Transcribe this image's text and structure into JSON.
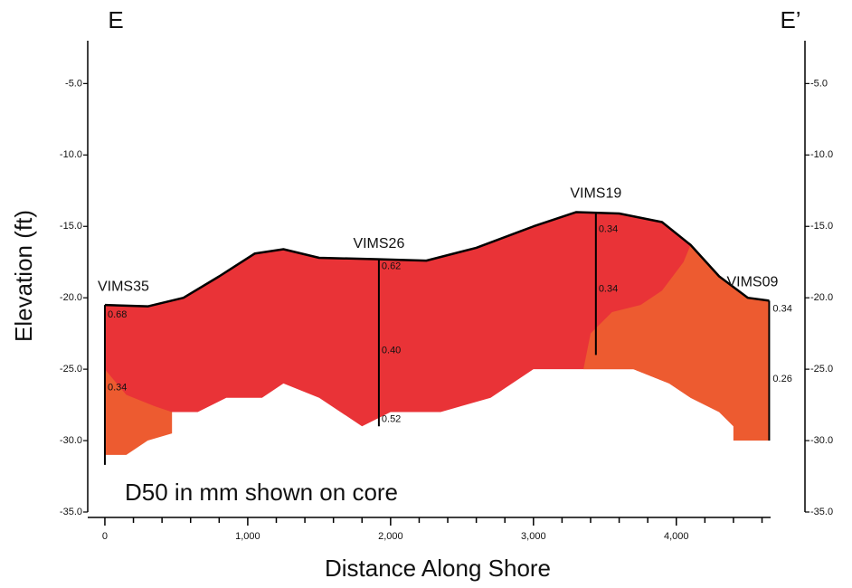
{
  "chart_data": {
    "type": "cross-section",
    "title_left": "E",
    "title_right": "E’",
    "y_label": "Elevation (ft)",
    "x_label": "Distance Along Shore",
    "annotation": "D50 in mm shown on core",
    "xlim": [
      -120,
      4660
    ],
    "ylim": [
      -35,
      -2
    ],
    "y2lim": [
      -35,
      -2
    ],
    "xticks": [
      {
        "value": 0,
        "label": "0"
      },
      {
        "value": 1000,
        "label": "1,000"
      },
      {
        "value": 2000,
        "label": "2,000"
      },
      {
        "value": 3000,
        "label": "3,000"
      },
      {
        "value": 4000,
        "label": "4,000"
      }
    ],
    "xminor_ticks": [
      200,
      400,
      600,
      800,
      1200,
      1400,
      1600,
      1800,
      2200,
      2400,
      2600,
      2800,
      3200,
      3400,
      3600,
      3800,
      4200,
      4400,
      4600
    ],
    "yticks": [
      {
        "value": -5,
        "label": "-5.0"
      },
      {
        "value": -10,
        "label": "-10.0"
      },
      {
        "value": -15,
        "label": "-15.0"
      },
      {
        "value": -20,
        "label": "-20.0"
      },
      {
        "value": -25,
        "label": "-25.0"
      },
      {
        "value": -30,
        "label": "-30.0"
      },
      {
        "value": -35,
        "label": "-35.0"
      }
    ],
    "y2ticks": [
      {
        "value": -5,
        "label": "-5.0"
      },
      {
        "value": -10,
        "label": "-10.0"
      },
      {
        "value": -15,
        "label": "-15.0"
      },
      {
        "value": -20,
        "label": "-20.0"
      },
      {
        "value": -25,
        "label": "-25.0"
      },
      {
        "value": -30,
        "label": "-30.0"
      },
      {
        "value": -35,
        "label": "-35.0"
      }
    ],
    "areas": [
      {
        "color": "#e93337",
        "x": [
          0,
          300,
          550,
          800,
          1050,
          1250,
          1500,
          1900,
          2250,
          2600,
          3000,
          3300,
          3600,
          3900,
          4100,
          4300,
          4500,
          4650,
          4650,
          4400,
          4400,
          4300,
          4100,
          3950,
          3700,
          3000,
          2700,
          2350,
          2000,
          1800,
          1500,
          1250,
          1100,
          850,
          650,
          500,
          470,
          0
        ],
        "y": [
          -20.5,
          -20.6,
          -20.0,
          -18.5,
          -16.9,
          -16.6,
          -17.2,
          -17.3,
          -17.4,
          -16.5,
          -15.0,
          -14.0,
          -14.1,
          -14.7,
          -16.3,
          -18.5,
          -20.0,
          -20.2,
          -30,
          -30,
          -29,
          -28,
          -27,
          -26,
          -25,
          -25,
          -27,
          -28,
          -28,
          -29,
          -27,
          -26,
          -27,
          -27,
          -28,
          -28,
          -28,
          -28
        ]
      },
      {
        "color": "#ed5b30",
        "x": [
          0,
          150,
          350,
          470,
          470,
          300,
          150,
          0
        ],
        "y": [
          -25,
          -26.8,
          -27.6,
          -28,
          -29.5,
          -30,
          -31,
          -31
        ]
      },
      {
        "color": "#ed5b30",
        "x": [
          3350,
          3400,
          3550,
          3750,
          3900,
          4050,
          4100,
          4300,
          4500,
          4650,
          4650,
          4400,
          4400,
          4300,
          4100,
          3950,
          3700,
          3600
        ],
        "y": [
          -25,
          -22.5,
          -21,
          -20.5,
          -19.5,
          -17.5,
          -16.3,
          -18.5,
          -20.0,
          -20.2,
          -30,
          -30,
          -29,
          -28,
          -27,
          -26,
          -25,
          -25
        ]
      }
    ],
    "surface": {
      "color": "#000000",
      "x": [
        0,
        300,
        550,
        800,
        1050,
        1250,
        1500,
        1900,
        2250,
        2600,
        3000,
        3300,
        3600,
        3900,
        4100,
        4300,
        4500,
        4650
      ],
      "y": [
        -20.5,
        -20.6,
        -20.0,
        -18.5,
        -16.9,
        -16.6,
        -17.2,
        -17.3,
        -17.4,
        -16.5,
        -15.0,
        -14.0,
        -14.1,
        -14.7,
        -16.3,
        -18.5,
        -20.0,
        -20.2
      ]
    },
    "cores": [
      {
        "name": "VIMS35",
        "x": 0,
        "top": -20.5,
        "bottom": -31.7,
        "values": [
          0.68,
          0.34
        ],
        "value_labels": [
          "0.68",
          "0.34"
        ],
        "label_elev": [
          -21.2,
          -26.3
        ]
      },
      {
        "name": "VIMS26",
        "x": 1918,
        "top": -17.3,
        "bottom": -29,
        "values": [
          0.62,
          0.4,
          0.52
        ],
        "value_labels": [
          "0.62",
          "0.40",
          "0.52"
        ],
        "label_elev": [
          -17.8,
          -23.7,
          -28.5
        ]
      },
      {
        "name": "VIMS19",
        "x": 3437,
        "top": -14.0,
        "bottom": -24.0,
        "values": [
          0.34,
          0.34
        ],
        "value_labels": [
          "0.34",
          "0.34"
        ],
        "label_elev": [
          -15.2,
          -19.4
        ]
      },
      {
        "name": "VIMS09",
        "x": 4650,
        "top": -20.2,
        "bottom": -30,
        "values": [
          0.34,
          0.26
        ],
        "value_labels": [
          "0.34",
          "0.26"
        ],
        "label_elev": [
          -20.8,
          -25.7
        ]
      }
    ]
  }
}
